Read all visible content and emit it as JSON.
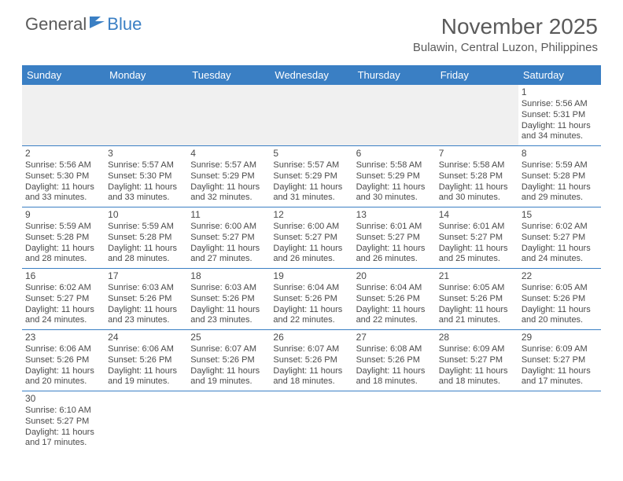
{
  "logo": {
    "text1": "General",
    "text2": "Blue"
  },
  "title": "November 2025",
  "location": "Bulawin, Central Luzon, Philippines",
  "colors": {
    "header_bg": "#3a7fc4",
    "header_text": "#ffffff",
    "rule": "#3a7fc4",
    "text": "#4a4a4a",
    "empty_bg": "#f0f0f0"
  },
  "weekdays": [
    "Sunday",
    "Monday",
    "Tuesday",
    "Wednesday",
    "Thursday",
    "Friday",
    "Saturday"
  ],
  "weeks": [
    [
      null,
      null,
      null,
      null,
      null,
      null,
      {
        "d": "1",
        "sr": "5:56 AM",
        "ss": "5:31 PM",
        "dl": "11 hours and 34 minutes."
      }
    ],
    [
      {
        "d": "2",
        "sr": "5:56 AM",
        "ss": "5:30 PM",
        "dl": "11 hours and 33 minutes."
      },
      {
        "d": "3",
        "sr": "5:57 AM",
        "ss": "5:30 PM",
        "dl": "11 hours and 33 minutes."
      },
      {
        "d": "4",
        "sr": "5:57 AM",
        "ss": "5:29 PM",
        "dl": "11 hours and 32 minutes."
      },
      {
        "d": "5",
        "sr": "5:57 AM",
        "ss": "5:29 PM",
        "dl": "11 hours and 31 minutes."
      },
      {
        "d": "6",
        "sr": "5:58 AM",
        "ss": "5:29 PM",
        "dl": "11 hours and 30 minutes."
      },
      {
        "d": "7",
        "sr": "5:58 AM",
        "ss": "5:28 PM",
        "dl": "11 hours and 30 minutes."
      },
      {
        "d": "8",
        "sr": "5:59 AM",
        "ss": "5:28 PM",
        "dl": "11 hours and 29 minutes."
      }
    ],
    [
      {
        "d": "9",
        "sr": "5:59 AM",
        "ss": "5:28 PM",
        "dl": "11 hours and 28 minutes."
      },
      {
        "d": "10",
        "sr": "5:59 AM",
        "ss": "5:28 PM",
        "dl": "11 hours and 28 minutes."
      },
      {
        "d": "11",
        "sr": "6:00 AM",
        "ss": "5:27 PM",
        "dl": "11 hours and 27 minutes."
      },
      {
        "d": "12",
        "sr": "6:00 AM",
        "ss": "5:27 PM",
        "dl": "11 hours and 26 minutes."
      },
      {
        "d": "13",
        "sr": "6:01 AM",
        "ss": "5:27 PM",
        "dl": "11 hours and 26 minutes."
      },
      {
        "d": "14",
        "sr": "6:01 AM",
        "ss": "5:27 PM",
        "dl": "11 hours and 25 minutes."
      },
      {
        "d": "15",
        "sr": "6:02 AM",
        "ss": "5:27 PM",
        "dl": "11 hours and 24 minutes."
      }
    ],
    [
      {
        "d": "16",
        "sr": "6:02 AM",
        "ss": "5:27 PM",
        "dl": "11 hours and 24 minutes."
      },
      {
        "d": "17",
        "sr": "6:03 AM",
        "ss": "5:26 PM",
        "dl": "11 hours and 23 minutes."
      },
      {
        "d": "18",
        "sr": "6:03 AM",
        "ss": "5:26 PM",
        "dl": "11 hours and 23 minutes."
      },
      {
        "d": "19",
        "sr": "6:04 AM",
        "ss": "5:26 PM",
        "dl": "11 hours and 22 minutes."
      },
      {
        "d": "20",
        "sr": "6:04 AM",
        "ss": "5:26 PM",
        "dl": "11 hours and 22 minutes."
      },
      {
        "d": "21",
        "sr": "6:05 AM",
        "ss": "5:26 PM",
        "dl": "11 hours and 21 minutes."
      },
      {
        "d": "22",
        "sr": "6:05 AM",
        "ss": "5:26 PM",
        "dl": "11 hours and 20 minutes."
      }
    ],
    [
      {
        "d": "23",
        "sr": "6:06 AM",
        "ss": "5:26 PM",
        "dl": "11 hours and 20 minutes."
      },
      {
        "d": "24",
        "sr": "6:06 AM",
        "ss": "5:26 PM",
        "dl": "11 hours and 19 minutes."
      },
      {
        "d": "25",
        "sr": "6:07 AM",
        "ss": "5:26 PM",
        "dl": "11 hours and 19 minutes."
      },
      {
        "d": "26",
        "sr": "6:07 AM",
        "ss": "5:26 PM",
        "dl": "11 hours and 18 minutes."
      },
      {
        "d": "27",
        "sr": "6:08 AM",
        "ss": "5:26 PM",
        "dl": "11 hours and 18 minutes."
      },
      {
        "d": "28",
        "sr": "6:09 AM",
        "ss": "5:27 PM",
        "dl": "11 hours and 18 minutes."
      },
      {
        "d": "29",
        "sr": "6:09 AM",
        "ss": "5:27 PM",
        "dl": "11 hours and 17 minutes."
      }
    ],
    [
      {
        "d": "30",
        "sr": "6:10 AM",
        "ss": "5:27 PM",
        "dl": "11 hours and 17 minutes."
      },
      null,
      null,
      null,
      null,
      null,
      null
    ]
  ],
  "labels": {
    "sunrise": "Sunrise: ",
    "sunset": "Sunset: ",
    "daylight": "Daylight: "
  }
}
